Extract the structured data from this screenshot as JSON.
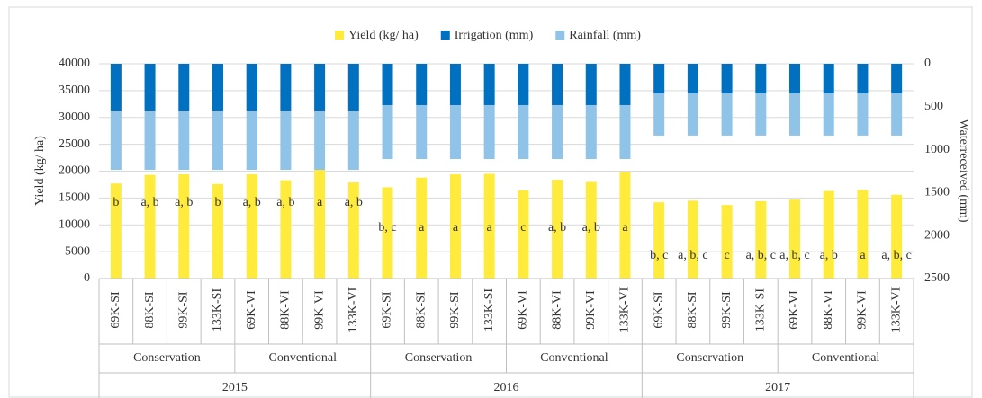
{
  "chart_data": {
    "type": "bar",
    "y_label": "Yield (kg/ ha)",
    "y2_label": "Waterreceived (mm)",
    "categories": [
      "69K-SI",
      "88K-SI",
      "99K-SI",
      "133K-SI",
      "69K-VI",
      "88K-VI",
      "99K-VI",
      "133K-VI",
      "69K-SI",
      "88K-SI",
      "99K-SI",
      "133K-SI",
      "69K-VI",
      "88K-VI",
      "99K-VI",
      "133K-VI",
      "69K-SI",
      "88K-SI",
      "99K-SI",
      "133K-SI",
      "69K-VI",
      "88K-VI",
      "99K-VI",
      "133K-VI"
    ],
    "category_groups": [
      "Conservation",
      "Conventional",
      "Conservation",
      "Conventional",
      "Conservation",
      "Conventional"
    ],
    "years": [
      "2015",
      "2016",
      "2017"
    ],
    "series": [
      {
        "name": "Yield (kg/ ha)",
        "color": "#ffeb3b",
        "values": [
          17700,
          19300,
          19400,
          17600,
          19400,
          18300,
          20300,
          17900,
          17000,
          18800,
          19400,
          19500,
          16400,
          18400,
          18000,
          19800,
          14200,
          14500,
          13700,
          14400,
          14700,
          16300,
          16500,
          15600
        ],
        "value_labels": [
          "b",
          "a, b",
          "a, b",
          "b",
          "a, b",
          "a, b",
          "a",
          "a, b",
          "b, c",
          "a",
          "a",
          "a",
          "c",
          "a, b",
          "a, b",
          "a",
          "b, c",
          "a, b, c",
          "c",
          "a, b, c",
          "a, b, c",
          "a, b",
          "a",
          "a, b, c"
        ]
      },
      {
        "name": "Irrigation (mm)",
        "color": "#0070c0",
        "axis": "y2",
        "values": [
          545,
          545,
          545,
          545,
          545,
          545,
          545,
          545,
          481,
          481,
          481,
          481,
          481,
          481,
          481,
          481,
          345,
          345,
          345,
          345,
          345,
          345,
          345,
          345
        ]
      },
      {
        "name": "Rainfall (mm)",
        "color": "#8fc3e8",
        "axis": "y2",
        "values": [
          690,
          690,
          690,
          690,
          690,
          690,
          690,
          690,
          628,
          628,
          628,
          628,
          628,
          628,
          628,
          628,
          491,
          491,
          491,
          491,
          491,
          491,
          491,
          491
        ]
      }
    ],
    "ylim": [
      0,
      40000
    ],
    "yticks": [
      0,
      5000,
      10000,
      15000,
      20000,
      25000,
      30000,
      35000,
      40000
    ],
    "y2lim": [
      2500,
      0
    ],
    "y2ticks": [
      0,
      500,
      1000,
      1500,
      2000,
      2500
    ],
    "y2_inverted": true,
    "grid": true,
    "legend": "top"
  }
}
